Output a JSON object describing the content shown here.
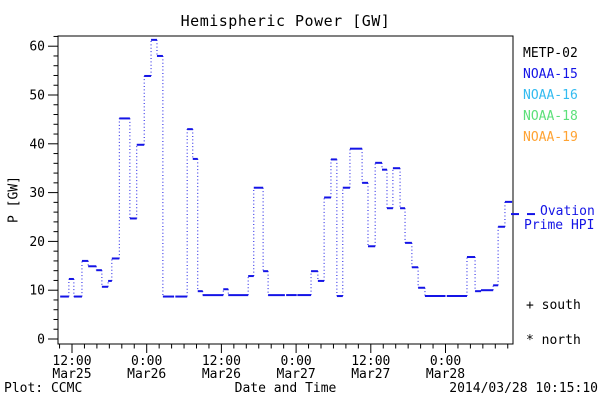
{
  "title": "Hemispheric Power [GW]",
  "axes": {
    "y_label": "P [GW]",
    "x_label": "Date and Time"
  },
  "footer": {
    "plot_credit": "Plot: CCMC",
    "timestamp": "2014/03/28 10:15:10"
  },
  "legend": {
    "satellites": [
      {
        "label": "METP-02",
        "color": "#000000"
      },
      {
        "label": "NOAA-15",
        "color": "#1414e6"
      },
      {
        "label": "NOAA-16",
        "color": "#33bbf0"
      },
      {
        "label": "NOAA-18",
        "color": "#5ce07a"
      },
      {
        "label": "NOAA-19",
        "color": "#ffa333"
      }
    ],
    "ovation": {
      "line1": "Ovation",
      "line2": "Prime HPI",
      "color": "#1414e6"
    },
    "markers": [
      {
        "symbol": "+",
        "label": "south"
      },
      {
        "symbol": "*",
        "label": "north"
      }
    ]
  },
  "chart_data": {
    "type": "line",
    "style": "horizontal dash per satellite pass, dotted vertical connectors",
    "title": "Hemispheric Power [GW]",
    "xlabel": "Date and Time",
    "ylabel": "P [GW]",
    "ylim": [
      0,
      62
    ],
    "grid": false,
    "x_unit": "hours since 2014-03-25 00:00 UT",
    "x_range_hours": [
      9.7,
      82.8
    ],
    "y_ticks": [
      0,
      10,
      20,
      30,
      40,
      50,
      60
    ],
    "y_minor_step": 2,
    "x_minor_step_hours": 2,
    "x_major_ticks": [
      {
        "t": 12,
        "time": "12:00",
        "date": "Mar25"
      },
      {
        "t": 24,
        "time": "0:00",
        "date": "Mar26"
      },
      {
        "t": 36,
        "time": "12:00",
        "date": "Mar26"
      },
      {
        "t": 48,
        "time": "0:00",
        "date": "Mar27"
      },
      {
        "t": 60,
        "time": "12:00",
        "date": "Mar27"
      },
      {
        "t": 72,
        "time": "0:00",
        "date": "Mar28"
      }
    ],
    "series": [
      {
        "name": "NOAA-15 hemispheric power",
        "color": "#1414e6",
        "steps_t_start_t_end_gw": [
          [
            10.1,
            11.5,
            8.7
          ],
          [
            11.5,
            12.3,
            12.3
          ],
          [
            12.3,
            13.6,
            8.7
          ],
          [
            13.6,
            14.6,
            16
          ],
          [
            14.6,
            15.9,
            14.9
          ],
          [
            15.9,
            16.8,
            14.1
          ],
          [
            16.8,
            17.8,
            10.7
          ],
          [
            17.8,
            18.4,
            11.9
          ],
          [
            18.4,
            19.6,
            16.5
          ],
          [
            19.6,
            21.3,
            45.2
          ],
          [
            21.3,
            22.4,
            24.7
          ],
          [
            22.4,
            23.6,
            39.8
          ],
          [
            23.6,
            24.7,
            53.9
          ],
          [
            24.7,
            25.65,
            61.3
          ],
          [
            25.65,
            26.6,
            58
          ],
          [
            26.6,
            28.4,
            8.7
          ],
          [
            28.6,
            30.5,
            8.7
          ],
          [
            30.5,
            31.4,
            43
          ],
          [
            31.4,
            32.2,
            36.9
          ],
          [
            32.2,
            33,
            9.8
          ],
          [
            33,
            36.3,
            9
          ],
          [
            36.3,
            37.1,
            10.2
          ],
          [
            37.1,
            40.3,
            9
          ],
          [
            40.3,
            41.2,
            12.9
          ],
          [
            41.2,
            42.7,
            31
          ],
          [
            42.7,
            43.5,
            13.9
          ],
          [
            43.5,
            46.2,
            9
          ],
          [
            46.4,
            48.1,
            9
          ],
          [
            48.2,
            50.4,
            9
          ],
          [
            50.4,
            51.5,
            13.9
          ],
          [
            51.5,
            52.5,
            11.9
          ],
          [
            52.5,
            53.6,
            29
          ],
          [
            53.6,
            54.55,
            36.8
          ],
          [
            54.55,
            55.5,
            8.8
          ],
          [
            55.5,
            56.65,
            31
          ],
          [
            56.65,
            58.6,
            39
          ],
          [
            58.6,
            59.55,
            32
          ],
          [
            59.55,
            60.7,
            19
          ],
          [
            60.7,
            61.8,
            36.1
          ],
          [
            61.8,
            62.6,
            34.7
          ],
          [
            62.6,
            63.55,
            26.8
          ],
          [
            63.55,
            64.7,
            35
          ],
          [
            64.7,
            65.5,
            26.8
          ],
          [
            65.5,
            66.6,
            19.7
          ],
          [
            66.6,
            67.6,
            14.7
          ],
          [
            67.6,
            68.7,
            10.5
          ],
          [
            68.7,
            72,
            8.8
          ],
          [
            72.2,
            75.45,
            8.8
          ],
          [
            75.45,
            76.75,
            16.8
          ],
          [
            76.75,
            77.7,
            9.8
          ],
          [
            77.7,
            79.65,
            10
          ],
          [
            79.65,
            80.45,
            11
          ],
          [
            80.45,
            81.55,
            23
          ],
          [
            81.55,
            82.7,
            28.1
          ]
        ]
      }
    ],
    "ovation_edge_marker_gw": 25.6
  }
}
